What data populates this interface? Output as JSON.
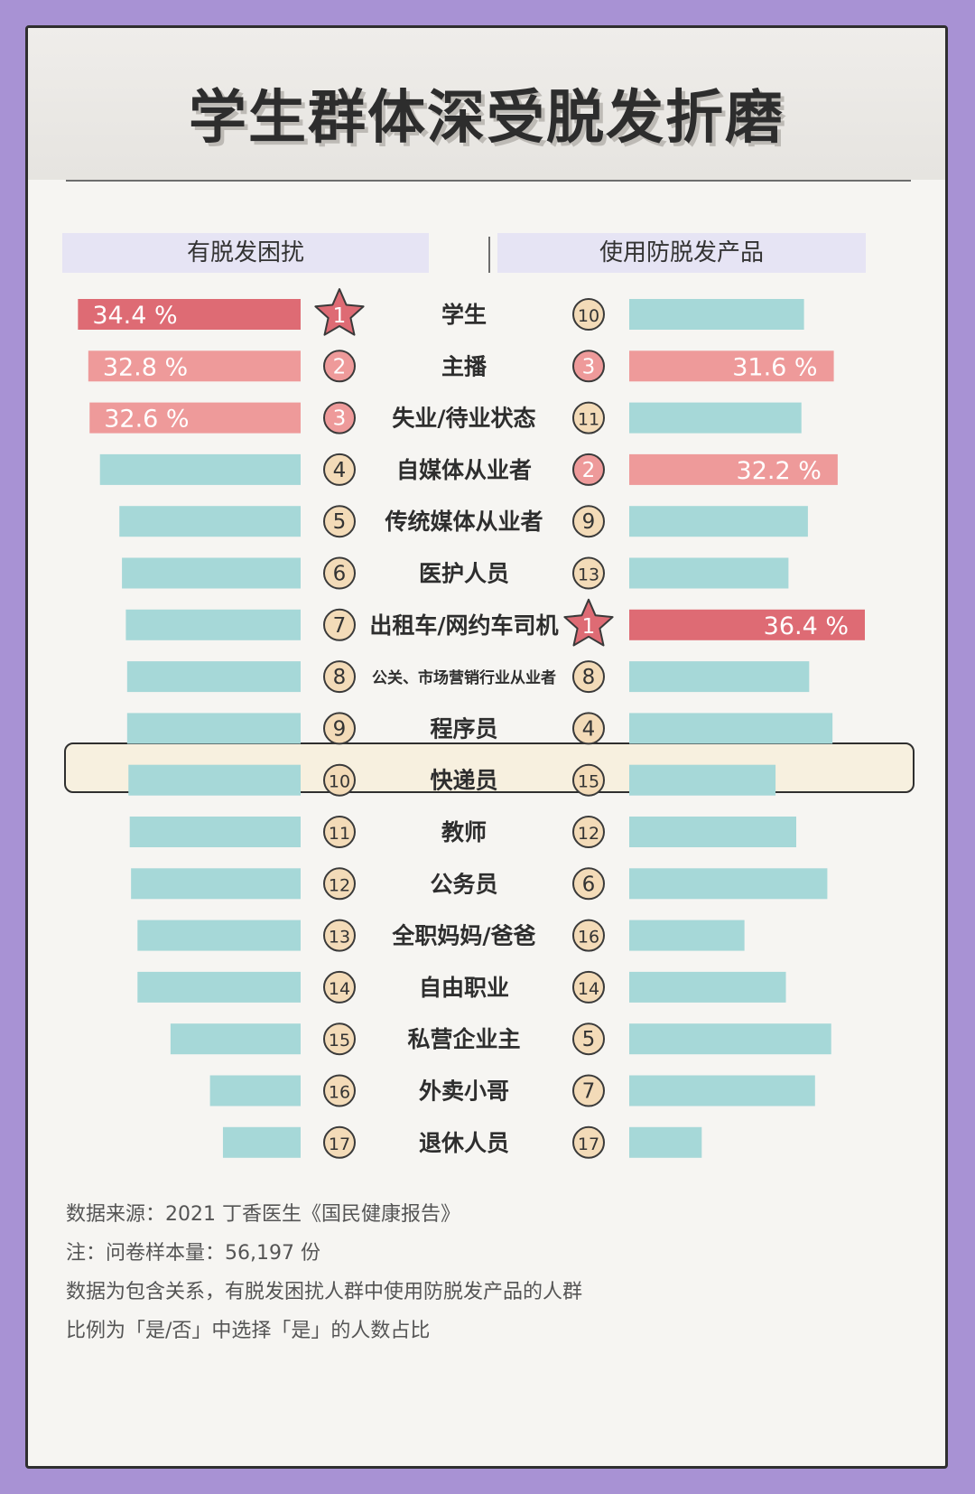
{
  "title": "学生群体深受脱发折磨",
  "headers": {
    "left": "有脱发困扰",
    "right": "使用防脱发产品"
  },
  "colors": {
    "background": "#a892d4",
    "bar_default": "#a6d8d8",
    "bar_first": "#de6b74",
    "bar_top": "#ee9a9a",
    "badge_fill": "#f3dbb8",
    "badge_top": "#ee9a9a",
    "badge_first": "#de6b74"
  },
  "chart_data": {
    "type": "bar",
    "categories": [
      "学生",
      "主播",
      "失业/待业状态",
      "自媒体从业者",
      "传统媒体从业者",
      "医护人员",
      "出租车/网约车司机",
      "公关、市场营销行业从业者",
      "程序员",
      "快递员",
      "教师",
      "公务员",
      "全职妈妈/爸爸",
      "自由职业",
      "私营企业主",
      "外卖小哥",
      "退休人员"
    ],
    "highlighted_category": "程序员",
    "series": [
      {
        "name": "有脱发困扰",
        "values": [
          34.4,
          32.8,
          32.6,
          31.0,
          28.0,
          27.6,
          27.0,
          26.8,
          26.8,
          26.6,
          26.4,
          26.2,
          25.2,
          25.2,
          20.1,
          14.0,
          12.0
        ],
        "ranks": [
          "1",
          "2",
          "3",
          "4",
          "5",
          "6",
          "7",
          "8",
          "9",
          "10",
          "11",
          "12",
          "13",
          "14",
          "15",
          "16",
          "17"
        ],
        "labels": [
          "34.4 %",
          "32.8 %",
          "32.6 %",
          "",
          "",
          "",
          "",
          "",
          "",
          "",
          "",
          "",
          "",
          "",
          "",
          "",
          ""
        ]
      },
      {
        "name": "使用防脱发产品",
        "values": [
          27.0,
          31.6,
          26.6,
          32.2,
          27.6,
          24.6,
          36.4,
          27.8,
          31.4,
          22.6,
          25.8,
          30.6,
          17.8,
          24.2,
          31.2,
          28.7,
          11.2
        ],
        "ranks": [
          "10",
          "3",
          "11",
          "2",
          "9",
          "13",
          "1",
          "8",
          "4",
          "15",
          "12",
          "6",
          "16",
          "14",
          "5",
          "7",
          "17"
        ],
        "labels": [
          "",
          "31.6 %",
          "",
          "32.2 %",
          "",
          "",
          "36.4 %",
          "",
          "",
          "",
          "",
          "",
          "",
          "",
          "",
          "",
          ""
        ]
      }
    ],
    "xlim": [
      0,
      36.4
    ]
  },
  "notes": [
    "数据来源：2021 丁香医生《国民健康报告》",
    "注：问卷样本量：56,197 份",
    "数据为包含关系，有脱发困扰人群中使用防脱发产品的人群",
    "比例为「是/否」中选择「是」的人数占比"
  ]
}
